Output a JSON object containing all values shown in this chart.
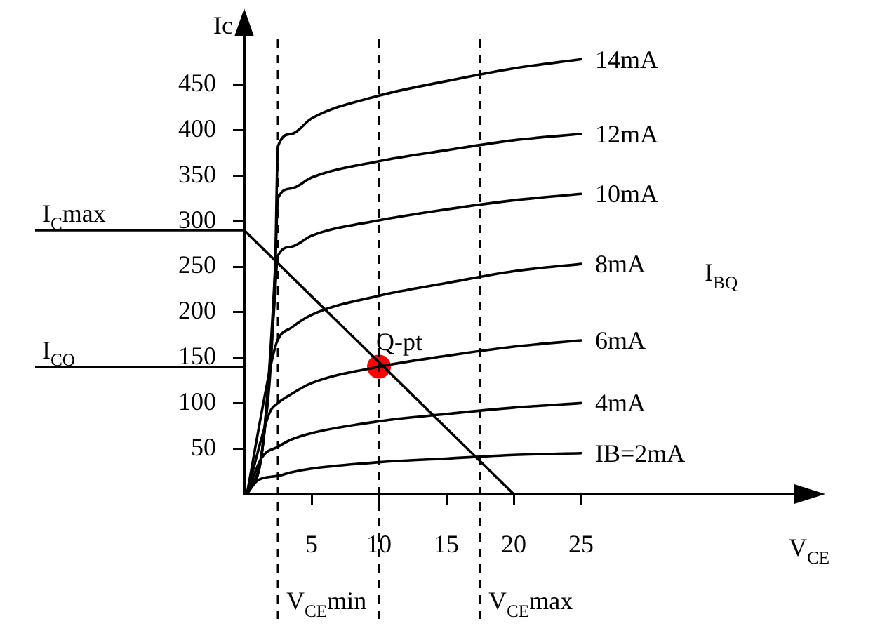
{
  "chart_data": {
    "type": "line",
    "xlabel": "V$_{CE}$",
    "ylabel": "Ic",
    "legend_title": "I$_{BQ}$",
    "xlim": [
      0,
      40
    ],
    "ylim": [
      0,
      500
    ],
    "xticks": [
      5,
      10,
      15,
      20,
      25
    ],
    "yticks": [
      50,
      100,
      150,
      200,
      250,
      300,
      350,
      400,
      450
    ],
    "grid": false,
    "legend": false,
    "marker": "none",
    "line_style": "solid",
    "series": [
      {
        "name": "14mA",
        "color": "#000000",
        "x": [
          0.2,
          1.35,
          2.3,
          2.5,
          3.5,
          5,
          10,
          15,
          20,
          25
        ],
        "values": [
          0,
          50,
          250,
          382,
          396,
          413,
          438,
          454,
          468,
          478
        ]
      },
      {
        "name": "12mA",
        "color": "#000000",
        "x": [
          0.2,
          1.35,
          2.3,
          2.5,
          3.5,
          5,
          10,
          15,
          20,
          25
        ],
        "values": [
          0,
          50,
          250,
          325,
          336,
          348,
          366,
          378,
          389,
          396
        ]
      },
      {
        "name": "10mA",
        "color": "#000000",
        "x": [
          0.2,
          1.35,
          2.2,
          2.5,
          3.5,
          5,
          10,
          15,
          20,
          25
        ],
        "values": [
          0,
          50,
          200,
          262,
          272,
          284,
          301,
          313,
          323,
          330
        ]
      },
      {
        "name": "8mA",
        "color": "#000000",
        "x": [
          0.2,
          2.1,
          2.5,
          3.5,
          5,
          10,
          15,
          20,
          25
        ],
        "values": [
          0,
          150,
          170,
          183,
          197,
          218,
          232,
          245,
          253
        ]
      },
      {
        "name": "6mA",
        "color": "#000000",
        "x": [
          0.2,
          1.9,
          2.5,
          3.5,
          5,
          10,
          15,
          20,
          25
        ],
        "values": [
          0,
          90,
          100,
          110,
          122,
          140,
          152,
          162,
          169
        ]
      },
      {
        "name": "4mA",
        "color": "#000000",
        "x": [
          0.2,
          1.3,
          2.5,
          3.5,
          5,
          10,
          15,
          20,
          25
        ],
        "values": [
          0,
          40,
          52,
          60,
          67,
          80,
          88,
          95,
          100
        ]
      },
      {
        "name": "IB=2mA",
        "color": "#000000",
        "x": [
          0.2,
          1.0,
          2.5,
          3.5,
          5,
          10,
          15,
          20,
          25
        ],
        "values": [
          0,
          15,
          20,
          24,
          28,
          35,
          39,
          43,
          45
        ]
      },
      {
        "type": "line",
        "color": "#000000",
        "x": [
          0,
          20
        ],
        "values": [
          290,
          0
        ]
      },
      {
        "type": "scatter",
        "color": "#ff0000",
        "marker": "circle",
        "x": [
          10
        ],
        "values": [
          140
        ]
      }
    ],
    "ref_lines": [
      {
        "axis": "y",
        "value": 290,
        "label": "I$_{C}$max",
        "color": "#000000",
        "line_style": "solid"
      },
      {
        "axis": "y",
        "value": 140,
        "label": "I$_{CQ}$",
        "color": "#000000",
        "line_style": "solid"
      },
      {
        "axis": "x",
        "value": 2.5,
        "label": "V$_{CE}$min",
        "color": "#000000",
        "line_style": "dashed"
      },
      {
        "axis": "x",
        "value": 10,
        "color": "#000000",
        "line_style": "dashed"
      },
      {
        "axis": "x",
        "value": 17.5,
        "label": "V$_{CE}$max",
        "color": "#000000",
        "line_style": "dashed"
      }
    ],
    "annotations": [
      {
        "text": "Q-pt",
        "x": 10,
        "y": 140
      }
    ]
  }
}
